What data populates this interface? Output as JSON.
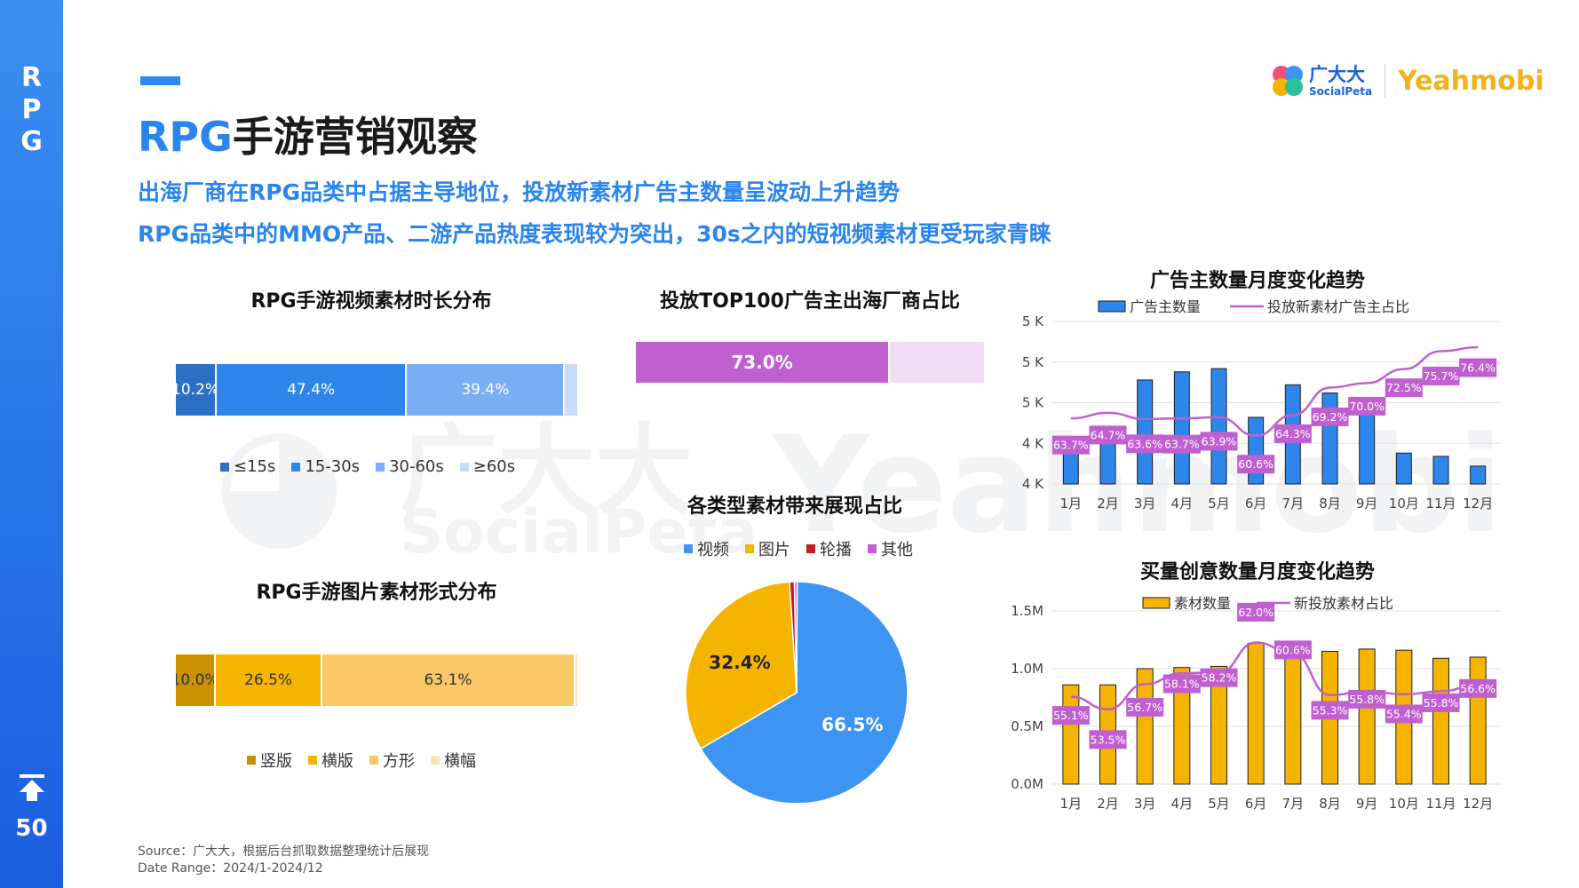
{
  "sidebar": {
    "letters": [
      "R",
      "P",
      "G"
    ],
    "page_number": "50"
  },
  "header": {
    "title_highlight": "RPG",
    "title_rest": "手游营销观察",
    "subtitle_1": "出海厂商在RPG品类中占据主导地位，投放新素材广告主数量呈波动上升趋势",
    "subtitle_2": "RPG品类中的MMO产品、二游产品热度表现较为突出，30s之内的短视频素材更受玩家青睐"
  },
  "logos": {
    "socialpeta_cn": "广大大",
    "socialpeta_en": "SocialPeta",
    "yeahmobi": "Yeahmobi"
  },
  "watermark": {
    "cn": "广大大",
    "en": "SocialPeta",
    "brand": "Yeahmobi"
  },
  "colors": {
    "accent": "#2a85ee",
    "purple": "#c05fd0",
    "yellow": "#f5b400"
  },
  "chart_data": [
    {
      "id": "video-duration",
      "type": "bar",
      "title": "RPG手游视频素材时长分布",
      "series": [
        {
          "name": "≤15s",
          "value": 10.2,
          "label": "10.2%",
          "color": "#2b6fc6"
        },
        {
          "name": "15-30s",
          "value": 47.4,
          "label": "47.4%",
          "color": "#2e86ea"
        },
        {
          "name": "30-60s",
          "value": 39.4,
          "label": "39.4%",
          "color": "#7aaef5"
        },
        {
          "name": "≥60s",
          "value": 3.0,
          "label": "",
          "color": "#c7dcfb"
        }
      ]
    },
    {
      "id": "top100",
      "type": "bar",
      "title": "投放TOP100广告主出海厂商占比",
      "series": [
        {
          "name": "出海厂商",
          "value": 73.0,
          "label": "73.0%",
          "color": "#c060d0"
        },
        {
          "name": "其他",
          "value": 27.0,
          "label": "",
          "color": "#f1dcf6"
        }
      ]
    },
    {
      "id": "image-format",
      "type": "bar",
      "title": "RPG手游图片素材形式分布",
      "series": [
        {
          "name": "竖版",
          "value": 10.0,
          "label": "10.0%",
          "color": "#c99200"
        },
        {
          "name": "横版",
          "value": 26.5,
          "label": "26.5%",
          "color": "#f5b400"
        },
        {
          "name": "方形",
          "value": 63.1,
          "label": "63.1%",
          "color": "#fac866"
        },
        {
          "name": "横幅",
          "value": 0.4,
          "label": "",
          "color": "#fce3b2"
        }
      ]
    },
    {
      "id": "material-types",
      "type": "pie",
      "title": "各类型素材带来展现占比",
      "legend": [
        "视频",
        "图片",
        "轮播",
        "其他"
      ],
      "slices": [
        {
          "name": "视频",
          "value": 66.5,
          "label": "66.5%",
          "color": "#3d94f2"
        },
        {
          "name": "图片",
          "value": 32.4,
          "label": "32.4%",
          "color": "#f5b400"
        },
        {
          "name": "轮播",
          "value": 0.7,
          "label": "",
          "color": "#c21f1f"
        },
        {
          "name": "其他",
          "value": 0.4,
          "label": "",
          "color": "#c060d0"
        }
      ]
    },
    {
      "id": "advertisers-monthly",
      "type": "bar",
      "title": "广告主数量月度变化趋势",
      "categories": [
        "1月",
        "2月",
        "3月",
        "4月",
        "5月",
        "6月",
        "7月",
        "8月",
        "9月",
        "10月",
        "11月",
        "12月"
      ],
      "y_ticks": [
        "4 K",
        "4 K",
        "5 K",
        "5 K",
        "5 K"
      ],
      "ylim": [
        4000,
        5000
      ],
      "series": [
        {
          "name": "广告主数量",
          "type": "bar",
          "values": [
            4190,
            4290,
            4640,
            4690,
            4710,
            4410,
            4610,
            4560,
            4450,
            4190,
            4170,
            4110
          ],
          "color": "#2e86ea"
        },
        {
          "name": "投放新素材广告主占比",
          "type": "line",
          "values": [
            63.7,
            64.7,
            63.6,
            63.7,
            63.9,
            60.6,
            64.3,
            69.2,
            70.0,
            72.5,
            75.7,
            76.4
          ],
          "labels": [
            "63.7%",
            "64.7%",
            "63.6%",
            "63.7%",
            "63.9%",
            "60.6%",
            "64.3%",
            "69.2%",
            "70.0%",
            "72.5%",
            "75.7%",
            "76.4%"
          ],
          "color": "#c060d0"
        }
      ]
    },
    {
      "id": "creatives-monthly",
      "type": "bar",
      "title": "买量创意数量月度变化趋势",
      "categories": [
        "1月",
        "2月",
        "3月",
        "4月",
        "5月",
        "6月",
        "7月",
        "8月",
        "9月",
        "10月",
        "11月",
        "12月"
      ],
      "y_ticks": [
        "0.0M",
        "0.5M",
        "1.0M",
        "1.5M"
      ],
      "ylim": [
        0,
        1.5
      ],
      "series": [
        {
          "name": "素材数量",
          "type": "bar",
          "values": [
            0.86,
            0.86,
            1.0,
            1.01,
            1.02,
            1.22,
            1.21,
            1.15,
            1.17,
            1.16,
            1.09,
            1.1
          ],
          "color": "#f5b400"
        },
        {
          "name": "新投放素材占比",
          "type": "line",
          "values": [
            55.1,
            53.5,
            56.7,
            58.1,
            58.2,
            62.0,
            60.6,
            55.3,
            55.8,
            55.4,
            55.8,
            56.6
          ],
          "labels": [
            "55.1%",
            "53.5%",
            "56.7%",
            "58.1%",
            "58.2%",
            "62.0%",
            "60.6%",
            "55.3%",
            "55.8%",
            "55.4%",
            "55.8%",
            "56.6%"
          ],
          "color": "#c060d0"
        }
      ]
    }
  ],
  "source": {
    "line1": "Source：广大大，根据后台抓取数据整理统计后展现",
    "line2": "Date Range：2024/1-2024/12"
  }
}
